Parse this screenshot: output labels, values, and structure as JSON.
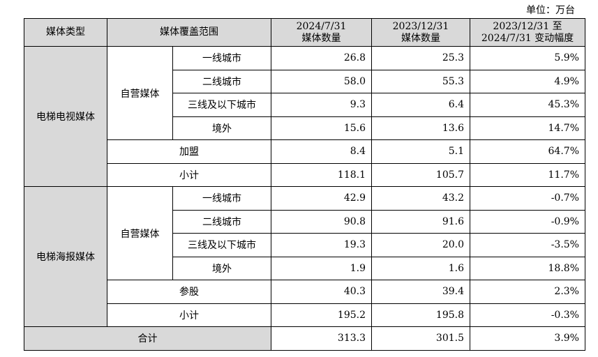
{
  "unit_label": "单位：万台",
  "headers": {
    "media_type": "媒体类型",
    "coverage": "媒体覆盖范围",
    "col1_line1": "2024/7/31",
    "col1_line2": "媒体数量",
    "col2_line1": "2023/12/31",
    "col2_line2": "媒体数量",
    "col3_line1": "2023/12/31 至",
    "col3_line2": "2024/7/31 变动幅度"
  },
  "groups": [
    {
      "name": "电梯电视媒体",
      "self_label": "自营媒体",
      "rows": [
        {
          "label": "一线城市",
          "v2024": "26.8",
          "v2023": "25.3",
          "change": "5.9%"
        },
        {
          "label": "二线城市",
          "v2024": "58.0",
          "v2023": "55.3",
          "change": "4.9%"
        },
        {
          "label": "三线及以下城市",
          "v2024": "9.3",
          "v2023": "6.4",
          "change": "45.3%"
        },
        {
          "label": "境外",
          "v2024": "15.6",
          "v2023": "13.6",
          "change": "14.7%"
        }
      ],
      "extra": {
        "label": "加盟",
        "v2024": "8.4",
        "v2023": "5.1",
        "change": "64.7%"
      },
      "subtotal": {
        "label": "小计",
        "v2024": "118.1",
        "v2023": "105.7",
        "change": "11.7%"
      }
    },
    {
      "name": "电梯海报媒体",
      "self_label": "自营媒体",
      "rows": [
        {
          "label": "一线城市",
          "v2024": "42.9",
          "v2023": "43.2",
          "change": "-0.7%"
        },
        {
          "label": "二线城市",
          "v2024": "90.8",
          "v2023": "91.6",
          "change": "-0.9%"
        },
        {
          "label": "三线及以下城市",
          "v2024": "19.3",
          "v2023": "20.0",
          "change": "-3.5%"
        },
        {
          "label": "境外",
          "v2024": "1.9",
          "v2023": "1.6",
          "change": "18.8%"
        }
      ],
      "extra": {
        "label": "参股",
        "v2024": "40.3",
        "v2023": "39.4",
        "change": "2.3%"
      },
      "subtotal": {
        "label": "小计",
        "v2024": "195.2",
        "v2023": "195.8",
        "change": "-0.3%"
      }
    }
  ],
  "total": {
    "label": "合计",
    "v2024": "313.3",
    "v2023": "301.5",
    "change": "3.9%"
  }
}
